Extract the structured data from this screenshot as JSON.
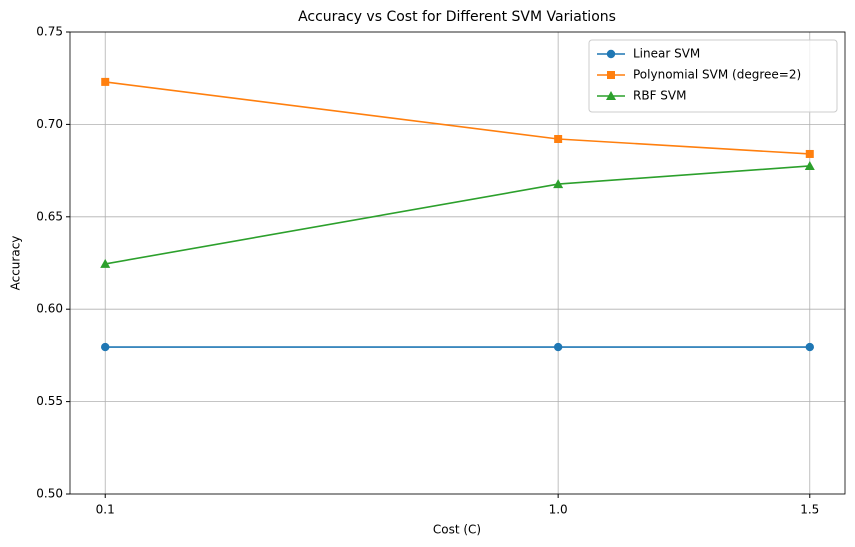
{
  "chart_data": {
    "type": "line",
    "title": "Accuracy vs Cost for Different SVM Variations",
    "x_label": "Cost (C)",
    "y_label": "Accuracy",
    "x": [
      0.1,
      1.0,
      1.5
    ],
    "series": [
      {
        "name": "Linear SVM",
        "color": "#1f77b4",
        "marker": "circle",
        "values": [
          0.5795,
          0.5795,
          0.5795
        ]
      },
      {
        "name": "Polynomial SVM (degree=2)",
        "color": "#ff7f0e",
        "marker": "square",
        "values": [
          0.723,
          0.6921,
          0.684
        ]
      },
      {
        "name": "RBF SVM",
        "color": "#2ca02c",
        "marker": "triangle",
        "values": [
          0.6245,
          0.6677,
          0.6775
        ]
      }
    ],
    "xlim": [
      0.03,
      1.57
    ],
    "xticks": [
      0.1,
      {
        "value": 1,
        "label": "1.0"
      },
      1.5
    ],
    "ylim": [
      0.5,
      0.75
    ],
    "yticks": [
      {
        "value": 0.5,
        "label": "0.50"
      },
      {
        "value": 0.55,
        "label": "0.55"
      },
      {
        "value": 0.6,
        "label": "0.60"
      },
      {
        "value": 0.65,
        "label": "0.65"
      },
      {
        "value": 0.7,
        "label": "0.70"
      },
      {
        "value": 0.75,
        "label": "0.75"
      }
    ],
    "grid": true,
    "legend": "upper right"
  }
}
